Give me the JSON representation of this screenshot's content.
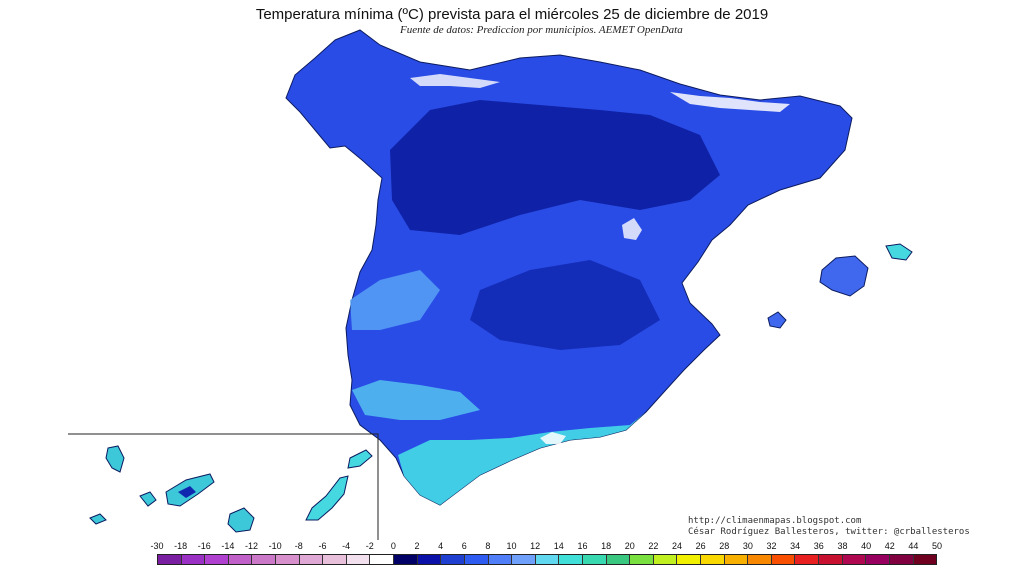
{
  "map": {
    "title": "Temperatura mínima (ºC) prevista para el miércoles 25 de diciembre de 2019",
    "subtitle": "Fuente de datos: Prediccion por municipios. AEMET OpenData",
    "credits": [
      "http://climaenmapas.blogspot.com",
      "César Rodríguez Ballesteros, twitter: @crballesteros"
    ]
  },
  "legend": {
    "labels": [
      "-30",
      "-18",
      "-16",
      "-14",
      "-12",
      "-10",
      "-8",
      "-6",
      "-4",
      "-2",
      "0",
      "2",
      "4",
      "6",
      "8",
      "10",
      "12",
      "14",
      "16",
      "18",
      "20",
      "22",
      "24",
      "26",
      "28",
      "30",
      "32",
      "34",
      "36",
      "38",
      "40",
      "42",
      "44",
      "50"
    ],
    "colors": [
      "#7a1fa2",
      "#9b30c4",
      "#b040d0",
      "#c060c8",
      "#cc78c8",
      "#d890cc",
      "#e0a8d4",
      "#e8c0dc",
      "#f2e0ee",
      "#ffffff",
      "#000066",
      "#0a10a8",
      "#1f3fd0",
      "#2f5cf0",
      "#4f7ef8",
      "#6fa0fc",
      "#5fd8f0",
      "#40e0d8",
      "#38d8b0",
      "#3ac880",
      "#7ae040",
      "#c0f020",
      "#f0f000",
      "#f8d800",
      "#f8b000",
      "#f88800",
      "#f85000",
      "#e82020",
      "#c81030",
      "#b00850",
      "#980060",
      "#800040",
      "#700020"
    ]
  },
  "regions": {
    "peninsula_color": "#2848e0",
    "cold_core_color": "#0a1a90",
    "mild_coast_color": "#48e0e0",
    "snow_color": "#ffffff"
  }
}
